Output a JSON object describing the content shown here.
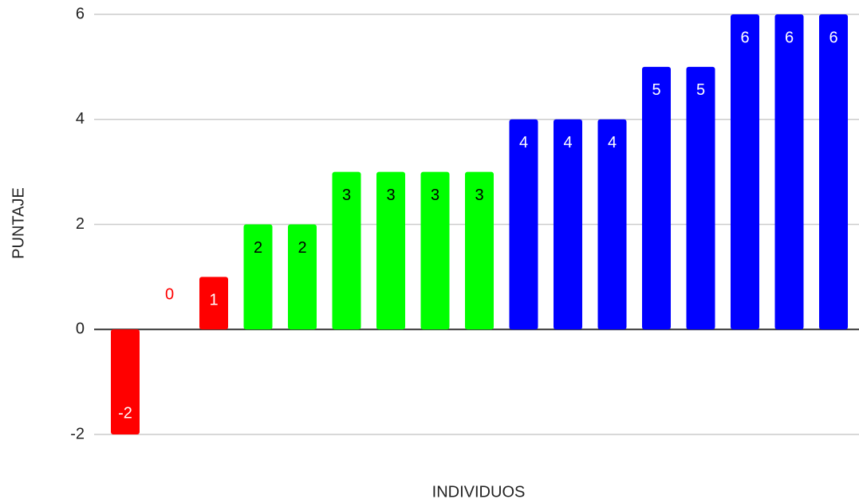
{
  "chart_data": {
    "type": "bar",
    "x_label": "INDIVIDUOS",
    "y_label": "PUNTAJE",
    "categories": [
      null,
      null,
      null,
      null,
      null,
      null,
      null,
      null,
      null,
      null,
      null,
      null,
      null,
      null,
      null,
      null,
      null
    ],
    "values": [
      -2,
      0,
      1,
      2,
      2,
      3,
      3,
      3,
      3,
      4,
      4,
      4,
      5,
      5,
      6,
      6,
      6
    ],
    "colors": [
      "#ff0000",
      "#ff0000",
      "#ff0000",
      "#00ff00",
      "#00ff00",
      "#00ff00",
      "#00ff00",
      "#00ff00",
      "#00ff00",
      "#0000ff",
      "#0000ff",
      "#0000ff",
      "#0000ff",
      "#0000ff",
      "#0000ff",
      "#0000ff",
      "#0000ff"
    ],
    "label_colors": [
      "#ffffff",
      "#ff0000",
      "#ffffff",
      "#000000",
      "#000000",
      "#000000",
      "#000000",
      "#000000",
      "#000000",
      "#ffffff",
      "#ffffff",
      "#ffffff",
      "#ffffff",
      "#ffffff",
      "#ffffff",
      "#ffffff",
      "#ffffff"
    ],
    "ylim": [
      -2,
      6
    ],
    "yticks": [
      -2,
      0,
      2,
      4,
      6
    ],
    "grid": true
  }
}
